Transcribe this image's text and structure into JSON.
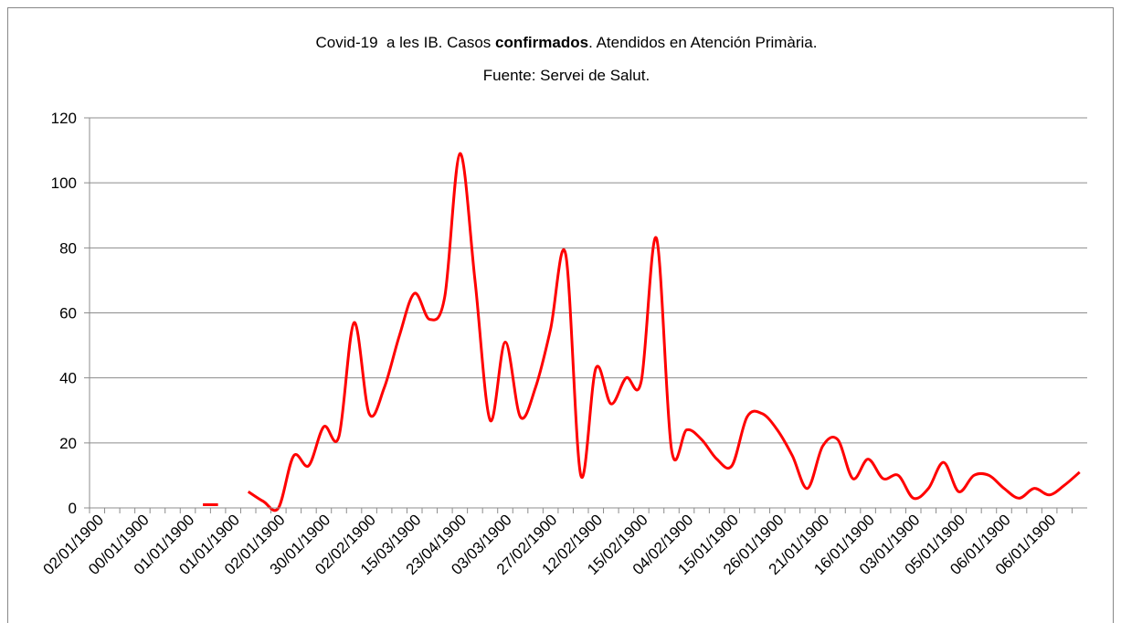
{
  "chart_data": {
    "type": "line",
    "title": [
      "Covid-19  a les IB. Casos ",
      "confirmados",
      ". Atendidos en Atención Primària."
    ],
    "subtitle": "Fuente: Servei de Salut.",
    "categories": [
      "02/01/1900",
      null,
      null,
      "00/01/1900",
      null,
      null,
      "01/01/1900",
      null,
      null,
      "01/01/1900",
      null,
      null,
      "02/01/1900",
      null,
      null,
      "30/01/1900",
      null,
      null,
      "02/02/1900",
      null,
      null,
      "15/03/1900",
      null,
      null,
      "23/04/1900",
      null,
      null,
      "03/03/1900",
      null,
      null,
      "27/02/1900",
      null,
      null,
      "12/02/1900",
      null,
      null,
      "15/02/1900",
      null,
      null,
      "04/02/1900",
      null,
      null,
      "15/01/1900",
      null,
      null,
      "26/01/1900",
      null,
      null,
      "21/01/1900",
      null,
      null,
      "16/01/1900",
      null,
      null,
      "03/01/1900",
      null,
      null,
      "05/01/1900",
      null,
      null,
      "06/01/1900",
      null,
      null,
      "06/01/1900",
      null,
      null
    ],
    "series": [
      {
        "name": "Casos confirmados",
        "color": "#ff0000",
        "values": [
          null,
          null,
          null,
          null,
          null,
          null,
          null,
          1,
          1,
          null,
          5,
          2,
          0,
          16,
          13,
          25,
          22,
          57,
          29,
          37,
          53,
          66,
          58,
          65,
          109,
          70,
          27,
          51,
          28,
          37,
          55,
          78,
          10,
          43,
          32,
          40,
          39,
          83,
          18,
          24,
          21,
          15,
          13,
          28,
          29,
          24,
          16,
          6,
          19,
          21,
          9,
          15,
          9,
          10,
          3,
          6,
          14,
          5,
          10,
          10,
          6,
          3,
          6,
          4,
          7,
          11
        ]
      }
    ],
    "ylim": [
      0,
      120
    ],
    "yticks": [
      0,
      20,
      40,
      60,
      80,
      100,
      120
    ],
    "grid": true,
    "smooth": true
  }
}
